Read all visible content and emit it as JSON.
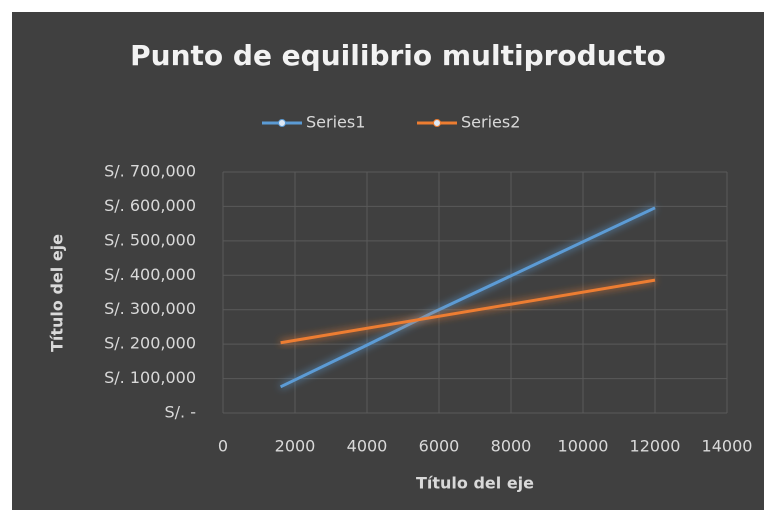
{
  "chart_data": {
    "type": "line",
    "title": "Punto de equilibrio multiproducto",
    "x_label": "Título del eje",
    "y_label": "Título del eje",
    "series": [
      {
        "name": "Series1",
        "color": "#5b9bd5",
        "x": [
          1600,
          3900,
          5800,
          12000
        ],
        "values": [
          76000,
          192000,
          290000,
          596000
        ]
      },
      {
        "name": "Series2",
        "color": "#ed7d31",
        "x": [
          1600,
          12000
        ],
        "values": [
          204000,
          386000
        ]
      }
    ],
    "xlim": [
      0,
      14000
    ],
    "xticks": [
      0,
      2000,
      4000,
      6000,
      8000,
      10000,
      12000,
      14000
    ],
    "ylim": [
      0,
      700000
    ],
    "yticks": [
      {
        "value": 0,
        "label": "S/. -"
      },
      {
        "value": 100000,
        "label": "S/. 100,000"
      },
      {
        "value": 200000,
        "label": "S/. 200,000"
      },
      {
        "value": 300000,
        "label": "S/. 300,000"
      },
      {
        "value": 400000,
        "label": "S/. 400,000"
      },
      {
        "value": 500000,
        "label": "S/. 500,000"
      },
      {
        "value": 600000,
        "label": "S/. 600,000"
      },
      {
        "value": 700000,
        "label": "S/. 700,000"
      }
    ],
    "grid": true,
    "legend": "top"
  }
}
